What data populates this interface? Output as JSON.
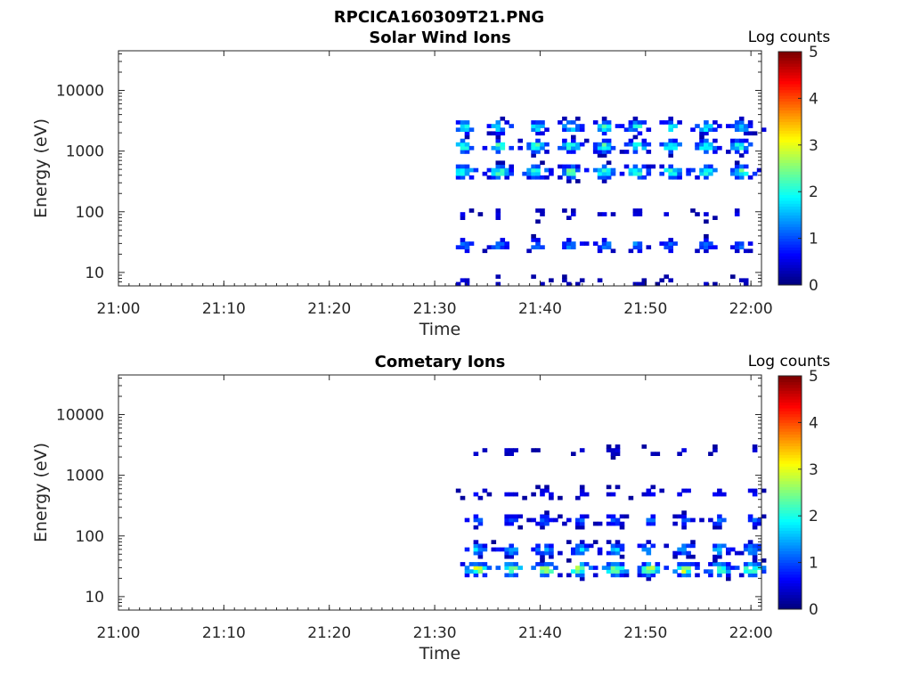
{
  "figure_title": "RPCICA160309T21.PNG",
  "colorbar": {
    "label": "Log counts",
    "range": [
      0,
      5
    ],
    "ticks": [
      "0",
      "1",
      "2",
      "3",
      "4",
      "5"
    ]
  },
  "chart_data": [
    {
      "type": "heatmap",
      "title": "Solar Wind Ions",
      "xlabel": "Time",
      "ylabel": "Energy (eV)",
      "xlim": [
        "21:00",
        "22:01"
      ],
      "ylim": [
        6,
        45000
      ],
      "yscale": "log",
      "xticks": [
        "21:00",
        "21:10",
        "21:20",
        "21:30",
        "21:40",
        "21:50",
        "22:00"
      ],
      "yticks": [
        "10",
        "100",
        "1000",
        "10000"
      ],
      "data_start": "21:32",
      "data_end": "22:01",
      "bursts_at": [
        "21:32.5",
        "21:35.9",
        "21:39.4",
        "21:42.7",
        "21:45.9",
        "21:49.0",
        "21:52.2",
        "21:55.5",
        "21:58.8"
      ],
      "bands": [
        {
          "energy_eV": 2500,
          "peak_log_counts": 1.8
        },
        {
          "energy_eV": 1200,
          "peak_log_counts": 2.0
        },
        {
          "energy_eV": 450,
          "peak_log_counts": 2.2
        },
        {
          "energy_eV": 90,
          "peak_log_counts": 0.5
        },
        {
          "energy_eV": 28,
          "peak_log_counts": 1.2
        },
        {
          "energy_eV": 7,
          "peak_log_counts": 0.4
        }
      ]
    },
    {
      "type": "heatmap",
      "title": "Cometary Ions",
      "xlabel": "Time",
      "ylabel": "Energy (eV)",
      "xlim": [
        "21:00",
        "22:01"
      ],
      "ylim": [
        6,
        45000
      ],
      "yscale": "log",
      "xticks": [
        "21:00",
        "21:10",
        "21:20",
        "21:30",
        "21:40",
        "21:50",
        "22:00"
      ],
      "yticks": [
        "10",
        "100",
        "1000",
        "10000"
      ],
      "data_start": "21:32",
      "data_end": "22:01",
      "bursts_at": [
        "21:33.8",
        "21:37.0",
        "21:40.3",
        "21:43.6",
        "21:46.9",
        "21:50.2",
        "21:53.5",
        "21:56.8",
        "21:59.9"
      ],
      "bands": [
        {
          "energy_eV": 28,
          "peak_log_counts": 2.6
        },
        {
          "energy_eV": 60,
          "peak_log_counts": 1.5
        },
        {
          "energy_eV": 180,
          "peak_log_counts": 1.0
        },
        {
          "energy_eV": 500,
          "peak_log_counts": 0.6
        },
        {
          "energy_eV": 2500,
          "peak_log_counts": 0.4
        }
      ]
    }
  ]
}
